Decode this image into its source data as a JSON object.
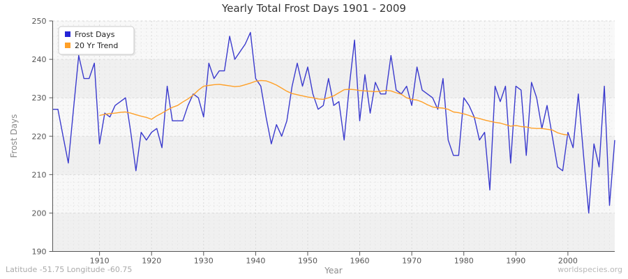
{
  "page": {
    "footer_left": "Latitude -51.75 Longitude -60.75",
    "footer_right": "worldspecies.org"
  },
  "chart_data": {
    "type": "line",
    "title": "Yearly Total Frost Days 1901 - 2009",
    "xlabel": "Year",
    "ylabel": "Frost Days",
    "xlim": [
      1901,
      2009
    ],
    "ylim": [
      190,
      250
    ],
    "x_ticks": [
      1910,
      1920,
      1930,
      1940,
      1950,
      1960,
      1970,
      1980,
      1990,
      2000
    ],
    "y_ticks": [
      190,
      200,
      210,
      220,
      230,
      240,
      250
    ],
    "grid": true,
    "legend_position": "top-left",
    "colors": {
      "frost_line": "#3a3acd",
      "trend_line": "#ffa028",
      "band_dark": "#f0f0f0",
      "band_light": "#f8f8f8",
      "axis": "#555555",
      "tick_text": "#555555",
      "label_text": "#8a8a8a",
      "footer_text": "#aaaaaa"
    },
    "series": [
      {
        "name": "Frost Days",
        "color": "#3a3acd",
        "x_start": 1901,
        "values": [
          227,
          227,
          220,
          213,
          227,
          241,
          235,
          235,
          239,
          218,
          226,
          225,
          228,
          229,
          230,
          221,
          211,
          221,
          219,
          221,
          222,
          217,
          233,
          224,
          224,
          224,
          228,
          231,
          230,
          225,
          239,
          235,
          237,
          237,
          246,
          240,
          242,
          244,
          247,
          235,
          233,
          225,
          218,
          223,
          220,
          224,
          233,
          239,
          233,
          238,
          231,
          227,
          228,
          235,
          228,
          229,
          219,
          233,
          245,
          224,
          236,
          226,
          234,
          231,
          231,
          241,
          232,
          231,
          233,
          228,
          238,
          232,
          231,
          230,
          227,
          235,
          219,
          215,
          215,
          230,
          228,
          225,
          219,
          221,
          206,
          233,
          229,
          233,
          213,
          233,
          232,
          215,
          234,
          230,
          222,
          228,
          220,
          212,
          211,
          221,
          217,
          231,
          215,
          200,
          218,
          212,
          233,
          202,
          219
        ]
      },
      {
        "name": "20 Yr Trend",
        "color": "#ffa028",
        "x_start": 1910,
        "values": [
          225.4,
          225.7,
          225.9,
          226.0,
          226.2,
          226.3,
          226.0,
          225.6,
          225.2,
          224.9,
          224.4,
          225.3,
          226.0,
          226.8,
          227.5,
          228.0,
          228.9,
          229.7,
          230.7,
          232.0,
          233.0,
          233.2,
          233.4,
          233.5,
          233.3,
          233.1,
          232.9,
          233.0,
          233.4,
          233.8,
          234.3,
          234.5,
          234.4,
          233.9,
          233.3,
          232.5,
          231.7,
          231.1,
          230.8,
          230.5,
          230.2,
          230.0,
          229.7,
          229.6,
          230.0,
          230.5,
          231.3,
          232.1,
          232.2,
          232.1,
          231.9,
          231.8,
          231.7,
          231.6,
          231.7,
          231.9,
          231.8,
          231.3,
          230.9,
          230.0,
          229.6,
          229.4,
          228.9,
          228.2,
          227.6,
          227.4,
          227.3,
          227.0,
          226.3,
          226.1,
          225.8,
          225.4,
          224.9,
          224.6,
          224.2,
          223.9,
          223.6,
          223.4,
          223.0,
          222.6,
          222.8,
          222.5,
          222.4,
          222.1,
          222.0,
          222.0,
          221.8,
          221.6,
          220.9,
          220.5,
          220.3
        ]
      }
    ]
  }
}
